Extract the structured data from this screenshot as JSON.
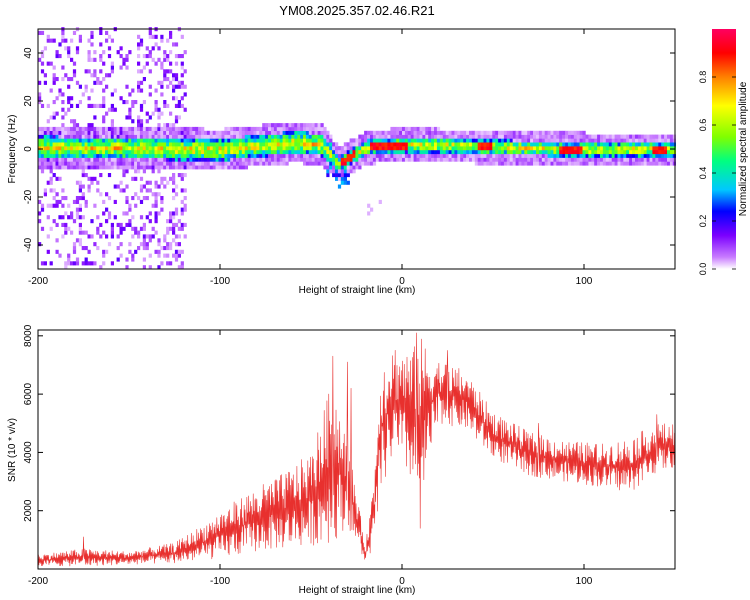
{
  "title": "YM08.2025.357.02.46.R21",
  "chart_data": [
    {
      "type": "heatmap",
      "name": "spectrogram",
      "xlabel": "Height of straight line (km)",
      "ylabel": "Frequency (Hz)",
      "xlim": [
        -200,
        150
      ],
      "ylim": [
        -50,
        50
      ],
      "xticks": [
        -200,
        -100,
        0,
        100
      ],
      "xtick_labels": [
        "-200",
        "-100",
        "0",
        "100"
      ],
      "yticks": [
        -40,
        -20,
        0,
        20,
        40
      ],
      "ytick_labels": [
        "-40",
        "-20",
        "0",
        "20",
        "40"
      ],
      "colorbar": {
        "label": "Normalized spectral amplitude",
        "range": [
          0,
          1
        ],
        "ticks": [
          0.0,
          0.2,
          0.4,
          0.6,
          0.8
        ],
        "tick_labels": [
          "0.0",
          "0.2",
          "0.4",
          "0.6",
          "0.8"
        ],
        "colormap": [
          "#ffffff",
          "#c87bff",
          "#7b00ff",
          "#0000ff",
          "#00c8ff",
          "#00ff80",
          "#80ff00",
          "#ffff00",
          "#ff8000",
          "#ff0000",
          "#ff0060"
        ]
      },
      "ridge": [
        {
          "x": -200,
          "f": 0.0
        },
        {
          "x": -100,
          "f": -1.0
        },
        {
          "x": -60,
          "f": 2.0
        },
        {
          "x": -45,
          "f": 1.0
        },
        {
          "x": -35,
          "f": -7.0
        },
        {
          "x": -20,
          "f": 0.0
        },
        {
          "x": 0,
          "f": 1.0
        },
        {
          "x": 100,
          "f": -1.0
        },
        {
          "x": 150,
          "f": -1.0
        }
      ],
      "hotspots_x": [
        -30,
        -15,
        -8,
        -2,
        45,
        90,
        95,
        140
      ]
    },
    {
      "type": "line",
      "name": "snr",
      "xlabel": "Height of straight line (km)",
      "ylabel": "SNR (10 * v/v)",
      "xlim": [
        -200,
        150
      ],
      "ylim": [
        0,
        8200
      ],
      "xticks": [
        -200,
        -100,
        0,
        100
      ],
      "xtick_labels": [
        "-200",
        "-100",
        "0",
        "100"
      ],
      "yticks": [
        2000,
        4000,
        6000,
        8000
      ],
      "ytick_labels": [
        "2000",
        "4000",
        "6000",
        "8000"
      ],
      "color": "#e8302e",
      "envelope": [
        {
          "x": -200,
          "lo": 100,
          "hi": 500
        },
        {
          "x": -175,
          "lo": 100,
          "hi": 700
        },
        {
          "x": -150,
          "lo": 150,
          "hi": 600
        },
        {
          "x": -125,
          "lo": 200,
          "hi": 900
        },
        {
          "x": -110,
          "lo": 300,
          "hi": 1500
        },
        {
          "x": -95,
          "lo": 400,
          "hi": 2200
        },
        {
          "x": -80,
          "lo": 600,
          "hi": 2800
        },
        {
          "x": -65,
          "lo": 700,
          "hi": 3300
        },
        {
          "x": -50,
          "lo": 800,
          "hi": 4000
        },
        {
          "x": -38,
          "lo": 900,
          "hi": 6500
        },
        {
          "x": -30,
          "lo": 1500,
          "hi": 4500
        },
        {
          "x": -20,
          "lo": 200,
          "hi": 800
        },
        {
          "x": -15,
          "lo": 800,
          "hi": 3500
        },
        {
          "x": -12,
          "lo": 2500,
          "hi": 7000
        },
        {
          "x": -5,
          "lo": 3800,
          "hi": 7800
        },
        {
          "x": 5,
          "lo": 3000,
          "hi": 7500
        },
        {
          "x": 10,
          "lo": 2000,
          "hi": 8000
        },
        {
          "x": 20,
          "lo": 5000,
          "hi": 7200
        },
        {
          "x": 35,
          "lo": 4800,
          "hi": 6800
        },
        {
          "x": 50,
          "lo": 3800,
          "hi": 5400
        },
        {
          "x": 70,
          "lo": 3200,
          "hi": 4700
        },
        {
          "x": 90,
          "lo": 3000,
          "hi": 4400
        },
        {
          "x": 110,
          "lo": 2800,
          "hi": 4300
        },
        {
          "x": 125,
          "lo": 2600,
          "hi": 4500
        },
        {
          "x": 140,
          "lo": 3300,
          "hi": 5000
        },
        {
          "x": 150,
          "lo": 3500,
          "hi": 5000
        }
      ],
      "spikes": [
        {
          "x": -175,
          "y": 1100
        },
        {
          "x": -38,
          "y": 7300
        },
        {
          "x": -30,
          "y": 7100
        },
        {
          "x": -28,
          "y": 6200
        },
        {
          "x": 8,
          "y": 8100
        },
        {
          "x": 10,
          "y": 1400
        },
        {
          "x": 25,
          "y": 7500
        },
        {
          "x": 75,
          "y": 5000
        },
        {
          "x": 140,
          "y": 5300
        }
      ]
    }
  ]
}
